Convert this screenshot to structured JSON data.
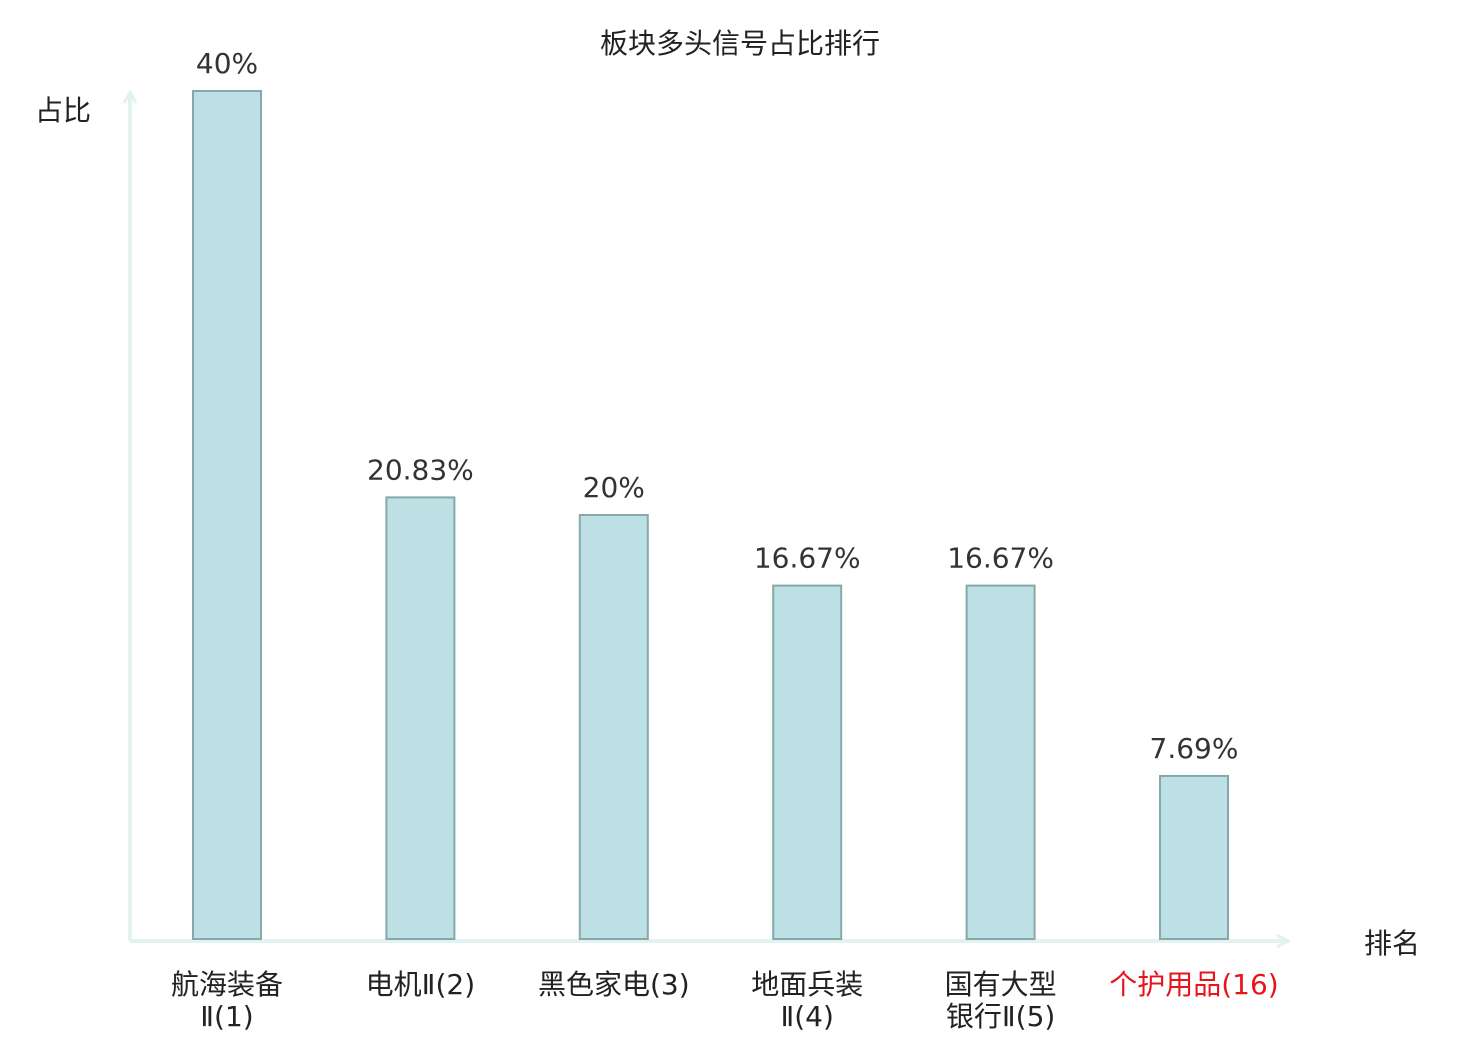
{
  "chart_data": {
    "type": "bar",
    "title": "板块多头信号占比排行",
    "ylabel": "占比",
    "xlabel": "排名",
    "ylim": [
      0,
      40
    ],
    "categories": [
      {
        "lines": [
          "航海装备",
          "Ⅱ(1)"
        ],
        "highlight": false
      },
      {
        "lines": [
          "电机Ⅱ(2)"
        ],
        "highlight": false
      },
      {
        "lines": [
          "黑色家电(3)"
        ],
        "highlight": false
      },
      {
        "lines": [
          "地面兵装",
          "Ⅱ(4)"
        ],
        "highlight": false
      },
      {
        "lines": [
          "国有大型",
          "银行Ⅱ(5)"
        ],
        "highlight": false
      },
      {
        "lines": [
          "个护用品(16)"
        ],
        "highlight": true
      }
    ],
    "values": [
      40,
      20.83,
      20,
      16.67,
      16.67,
      7.69
    ],
    "value_labels": [
      "40%",
      "20.83%",
      "20%",
      "16.67%",
      "16.67%",
      "7.69%"
    ],
    "colors": {
      "bar_fill": "#bce0e3",
      "bar_stroke": "#87a8ab",
      "axis": "#e1f2f0",
      "highlight_text": "#e8141c"
    },
    "grid": false,
    "legend": "none"
  }
}
